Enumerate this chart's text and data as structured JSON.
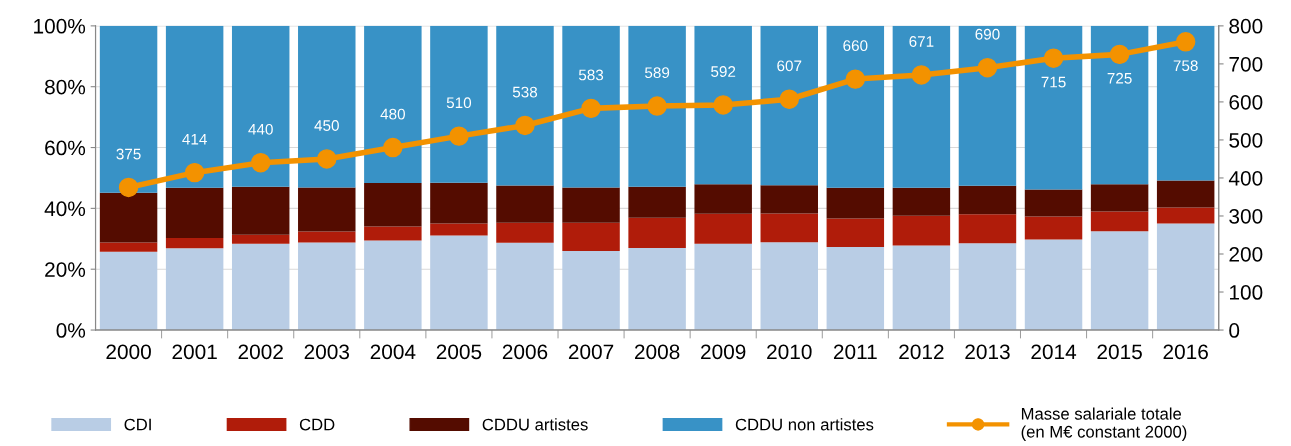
{
  "chart_data": {
    "type": "bar",
    "stacked": true,
    "categories": [
      "2000",
      "2001",
      "2002",
      "2003",
      "2004",
      "2005",
      "2006",
      "2007",
      "2008",
      "2009",
      "2010",
      "2011",
      "2012",
      "2013",
      "2014",
      "2015",
      "2016"
    ],
    "series": [
      {
        "name": "CDI",
        "color": "#b9cde5",
        "values": [
          25.7,
          26.9,
          28.4,
          28.8,
          29.4,
          31.1,
          28.7,
          26.0,
          27.0,
          28.4,
          28.9,
          27.3,
          27.8,
          28.5,
          29.8,
          32.5,
          35.0
        ]
      },
      {
        "name": "CDD",
        "color": "#b01c0a",
        "values": [
          3.1,
          3.4,
          2.9,
          3.6,
          4.6,
          3.9,
          6.6,
          9.3,
          9.9,
          9.8,
          9.4,
          9.4,
          9.8,
          9.6,
          7.5,
          6.5,
          5.3
        ]
      },
      {
        "name": "CDDU artistes",
        "color": "#540c00",
        "values": [
          16.3,
          16.5,
          15.8,
          14.5,
          14.3,
          13.4,
          12.2,
          11.6,
          10.2,
          9.7,
          9.3,
          10.1,
          9.2,
          9.3,
          8.9,
          8.9,
          8.9
        ]
      },
      {
        "name": "CDDU non artistes",
        "color": "#3892c6",
        "values": [
          54.9,
          53.2,
          52.9,
          53.1,
          51.7,
          51.6,
          52.5,
          53.1,
          52.9,
          52.1,
          52.4,
          53.2,
          53.2,
          52.6,
          53.8,
          52.1,
          50.8
        ]
      },
      {
        "name": "Masse salariale totale\n(en M€ constant 2000)",
        "type": "line",
        "axis": "y2",
        "color": "#f39200",
        "marker": "circle",
        "data_labels": true,
        "values": [
          375,
          414,
          440,
          450,
          480,
          510,
          538,
          583,
          589,
          592,
          607,
          660,
          671,
          690,
          715,
          725,
          758
        ]
      }
    ],
    "ylim": [
      0,
      100
    ],
    "yticks": [
      {
        "value": 0,
        "label": "0%"
      },
      {
        "value": 20,
        "label": "20%"
      },
      {
        "value": 40,
        "label": "40%"
      },
      {
        "value": 60,
        "label": "60%"
      },
      {
        "value": 80,
        "label": "80%"
      },
      {
        "value": 100,
        "label": "100%"
      }
    ],
    "y2lim": [
      0,
      800
    ],
    "y2ticks": [
      0,
      100,
      200,
      300,
      400,
      500,
      600,
      700,
      800
    ],
    "grid": "y",
    "legend": "bottom"
  }
}
